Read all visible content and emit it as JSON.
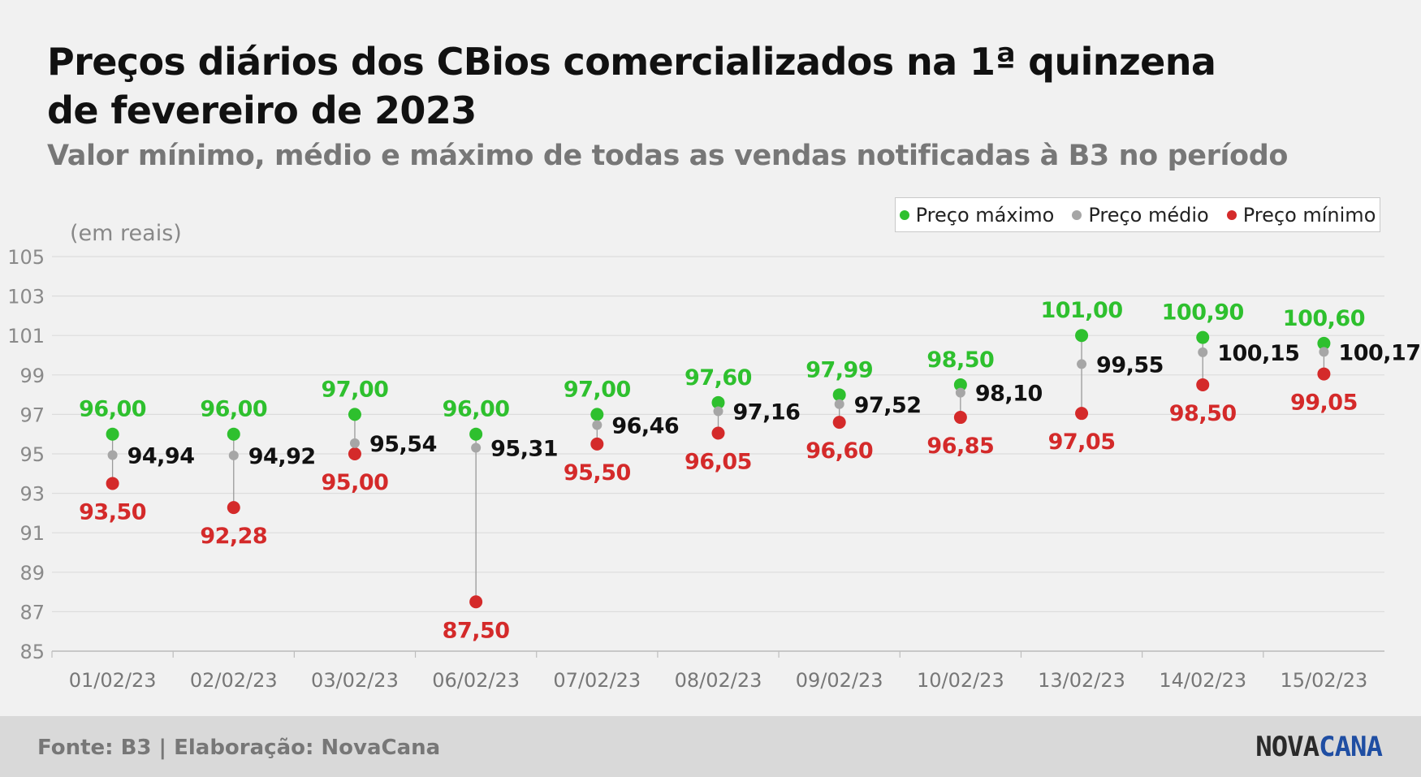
{
  "header": {
    "title_line1": "Preços diários dos CBios comercializados na 1ª quinzena",
    "title_line2": "de fevereiro  de 2023",
    "subtitle": "Valor mínimo, médio e máximo de todas as vendas notificadas à B3 no período",
    "unit_label": "(em reais)"
  },
  "legend": {
    "max_label": "Preço máximo",
    "avg_label": "Preço médio",
    "min_label": "Preço mínimo"
  },
  "colors": {
    "max": "#2ec02e",
    "avg": "#a6a6a6",
    "min": "#d42a2a",
    "avg_label": "#111111",
    "grid": "#dcdcdc",
    "axis_text": "#8a8a8a"
  },
  "chart_data": {
    "type": "scatter",
    "categories": [
      "01/02/23",
      "02/02/23",
      "03/02/23",
      "06/02/23",
      "07/02/23",
      "08/02/23",
      "09/02/23",
      "10/02/23",
      "13/02/23",
      "14/02/23",
      "15/02/23"
    ],
    "series": [
      {
        "name": "Preço máximo",
        "values": [
          96.0,
          96.0,
          97.0,
          96.0,
          97.0,
          97.6,
          97.99,
          98.5,
          101.0,
          100.9,
          100.6
        ],
        "labels": [
          "96,00",
          "96,00",
          "97,00",
          "96,00",
          "97,00",
          "97,60",
          "97,99",
          "98,50",
          "101,00",
          "100,90",
          "100,60"
        ]
      },
      {
        "name": "Preço médio",
        "values": [
          94.94,
          94.92,
          95.54,
          95.31,
          96.46,
          97.16,
          97.52,
          98.1,
          99.55,
          100.15,
          100.17
        ],
        "labels": [
          "94,94",
          "94,92",
          "95,54",
          "95,31",
          "96,46",
          "97,16",
          "97,52",
          "98,10",
          "99,55",
          "100,15",
          "100,17"
        ]
      },
      {
        "name": "Preço mínimo",
        "values": [
          93.5,
          92.28,
          95.0,
          87.5,
          95.5,
          96.05,
          96.6,
          96.85,
          97.05,
          98.5,
          99.05
        ],
        "labels": [
          "93,50",
          "92,28",
          "95,00",
          "87,50",
          "95,50",
          "96,05",
          "96,60",
          "96,85",
          "97,05",
          "98,50",
          "99,05"
        ]
      }
    ],
    "yticks": [
      "105",
      "103",
      "101",
      "99",
      "97",
      "95",
      "93",
      "91",
      "89",
      "87",
      "85"
    ],
    "ylim": [
      85,
      105
    ],
    "grid": true,
    "legend_position": "top-right"
  },
  "footer": {
    "source": "Fonte: B3 | Elaboração: NovaCana",
    "logo_part1": "NOVA",
    "logo_part2": "CANA"
  }
}
